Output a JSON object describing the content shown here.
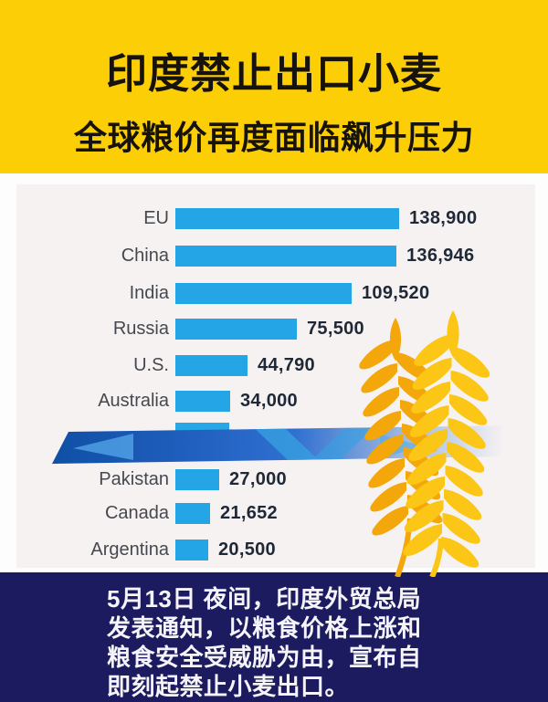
{
  "header": {
    "line1": "印度禁止出口小麦",
    "line2": "全球粮价再度面临飙升压力",
    "bg_color": "#FCCE05",
    "text_color": "#16130E"
  },
  "chart_data": {
    "type": "bar",
    "orientation": "horizontal",
    "categories": [
      "EU",
      "China",
      "India",
      "Russia",
      "U.S.",
      "Australia",
      "Pakistan",
      "Canada",
      "Argentina"
    ],
    "values": [
      138900,
      136946,
      109520,
      75500,
      44790,
      34000,
      27000,
      21652,
      20500
    ],
    "value_labels": [
      "138,900",
      "136,946",
      "109,520",
      "75,500",
      "44,790",
      "34,000",
      "27,000",
      "21,652",
      "20,500"
    ],
    "axis_max": 138900,
    "bar_color": "#24A5E6",
    "label_color": "#45494F",
    "value_color": "#1F2837",
    "grid": false,
    "legend": false,
    "note_obscured_row": "one bar row between Australia and Pakistan is mostly hidden behind the blue arrow banner; only the bar's top sliver is visible, no label or value readable"
  },
  "footer": {
    "lines": [
      "5月13日 夜间，印度外贸总局",
      "发表通知，以粮食价格上涨和",
      "粮食安全受威胁为由，宣布自",
      "即刻起禁止小麦出口。"
    ],
    "bg_color": "#1D1B5F",
    "text_color": "#F5F5F9"
  },
  "decorations": {
    "wheat_icon": {
      "back_ear_color": "#F3A70A",
      "front_ear_color": "#FBC616"
    },
    "arrow_banner": {
      "color_start": "#0F4FA4",
      "color_mid": "#2E6FD0",
      "inner_shape_color": "#4E9FE3"
    }
  }
}
